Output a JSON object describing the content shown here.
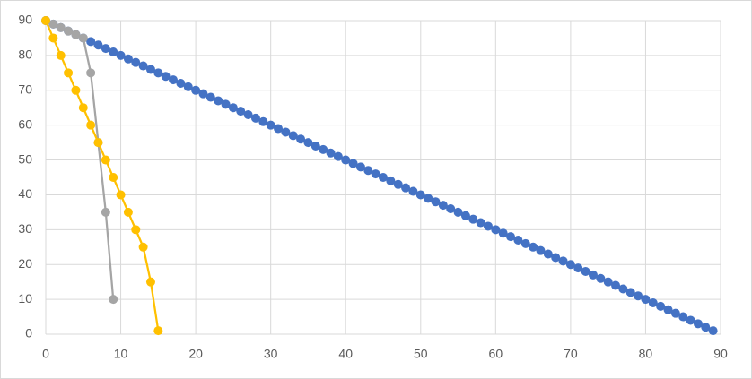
{
  "chart_data": {
    "type": "scatter-line",
    "xlim": [
      0,
      90
    ],
    "ylim": [
      0,
      90
    ],
    "xticks": [
      0,
      10,
      20,
      30,
      40,
      50,
      60,
      70,
      80,
      90
    ],
    "yticks": [
      0,
      10,
      20,
      30,
      40,
      50,
      60,
      70,
      80,
      90
    ],
    "grid": true,
    "series": [
      {
        "color": "#4472c4",
        "x": [
          0,
          1,
          2,
          3,
          4,
          5,
          6,
          7,
          8,
          9,
          10,
          11,
          12,
          13,
          14,
          15,
          16,
          17,
          18,
          19,
          20,
          21,
          22,
          23,
          24,
          25,
          26,
          27,
          28,
          29,
          30,
          31,
          32,
          33,
          34,
          35,
          36,
          37,
          38,
          39,
          40,
          41,
          42,
          43,
          44,
          45,
          46,
          47,
          48,
          49,
          50,
          51,
          52,
          53,
          54,
          55,
          56,
          57,
          58,
          59,
          60,
          61,
          62,
          63,
          64,
          65,
          66,
          67,
          68,
          69,
          70,
          71,
          72,
          73,
          74,
          75,
          76,
          77,
          78,
          79,
          80,
          81,
          82,
          83,
          84,
          85,
          86,
          87,
          88,
          89
        ],
        "values": [
          90,
          89,
          88,
          87,
          86,
          85,
          84,
          83,
          82,
          81,
          80,
          79,
          78,
          77,
          76,
          75,
          74,
          73,
          72,
          71,
          70,
          69,
          68,
          67,
          66,
          65,
          64,
          63,
          62,
          61,
          60,
          59,
          58,
          57,
          56,
          55,
          54,
          53,
          52,
          51,
          50,
          49,
          48,
          47,
          46,
          45,
          44,
          43,
          42,
          41,
          40,
          39,
          38,
          37,
          36,
          35,
          34,
          33,
          32,
          31,
          30,
          29,
          28,
          27,
          26,
          25,
          24,
          23,
          22,
          21,
          20,
          19,
          18,
          17,
          16,
          15,
          14,
          13,
          12,
          11,
          10,
          9,
          8,
          7,
          6,
          5,
          4,
          3,
          2,
          1
        ]
      },
      {
        "color": "#a5a5a5",
        "x": [
          0,
          1,
          2,
          3,
          4,
          5,
          6,
          7,
          8,
          9
        ],
        "values": [
          90,
          89,
          88,
          87,
          86,
          85,
          75,
          55,
          35,
          10
        ]
      },
      {
        "color": "#ffc000",
        "x": [
          0,
          1,
          2,
          3,
          4,
          5,
          6,
          7,
          8,
          9,
          10,
          11,
          12,
          13,
          14,
          15
        ],
        "values": [
          90,
          85,
          80,
          75,
          70,
          65,
          60,
          55,
          50,
          45,
          40,
          35,
          30,
          25,
          15,
          1
        ]
      }
    ]
  }
}
